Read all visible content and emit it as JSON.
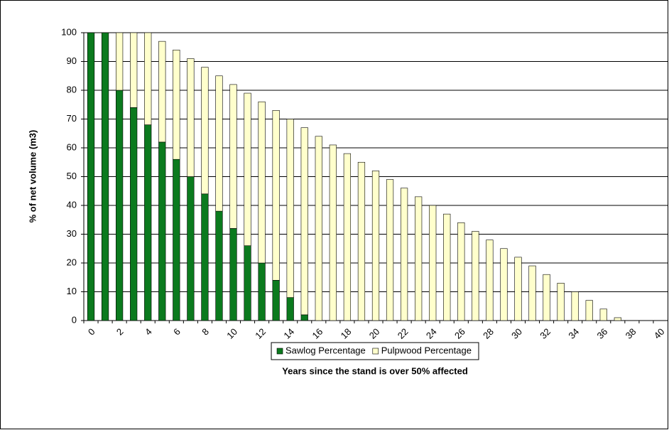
{
  "chart_data": {
    "type": "stacked_bar",
    "x_label": "Years since the stand is over 50% affected",
    "y_label": "% of net volume (m3)",
    "categories": [
      "0",
      null,
      "2",
      null,
      "4",
      null,
      "6",
      null,
      "8",
      null,
      "10",
      null,
      "12",
      null,
      "14",
      null,
      "16",
      null,
      "18",
      null,
      "20",
      null,
      "22",
      null,
      "24",
      null,
      "26",
      null,
      "28",
      null,
      "30",
      null,
      "32",
      null,
      "34",
      null,
      "36",
      null,
      "38",
      null,
      "40"
    ],
    "series": [
      {
        "name": "Sawlog Percentage",
        "color": "#0b7a1e",
        "values": [
          100,
          100,
          80,
          74,
          68,
          62,
          56,
          50,
          44,
          38,
          32,
          26,
          20,
          14,
          8,
          2,
          0,
          0,
          0,
          0,
          0,
          0,
          0,
          0,
          0,
          0,
          0,
          0,
          0,
          0,
          0,
          0,
          0,
          0,
          0,
          0,
          0,
          0,
          0,
          0,
          0
        ]
      },
      {
        "name": "Pulpwood Percentage",
        "color": "#ffffcc",
        "values": [
          0,
          0,
          20,
          26,
          32,
          35,
          38,
          41,
          44,
          47,
          50,
          53,
          56,
          59,
          62,
          65,
          64,
          61,
          58,
          55,
          52,
          49,
          46,
          43,
          40,
          37,
          34,
          31,
          28,
          25,
          22,
          19,
          16,
          13,
          10,
          7,
          4,
          1,
          0,
          0,
          0
        ]
      }
    ],
    "ylim": [
      0,
      100
    ],
    "yticks": [
      0,
      10,
      20,
      30,
      40,
      50,
      60,
      70,
      80,
      90,
      100
    ],
    "grid": true,
    "legend": "bottom"
  }
}
